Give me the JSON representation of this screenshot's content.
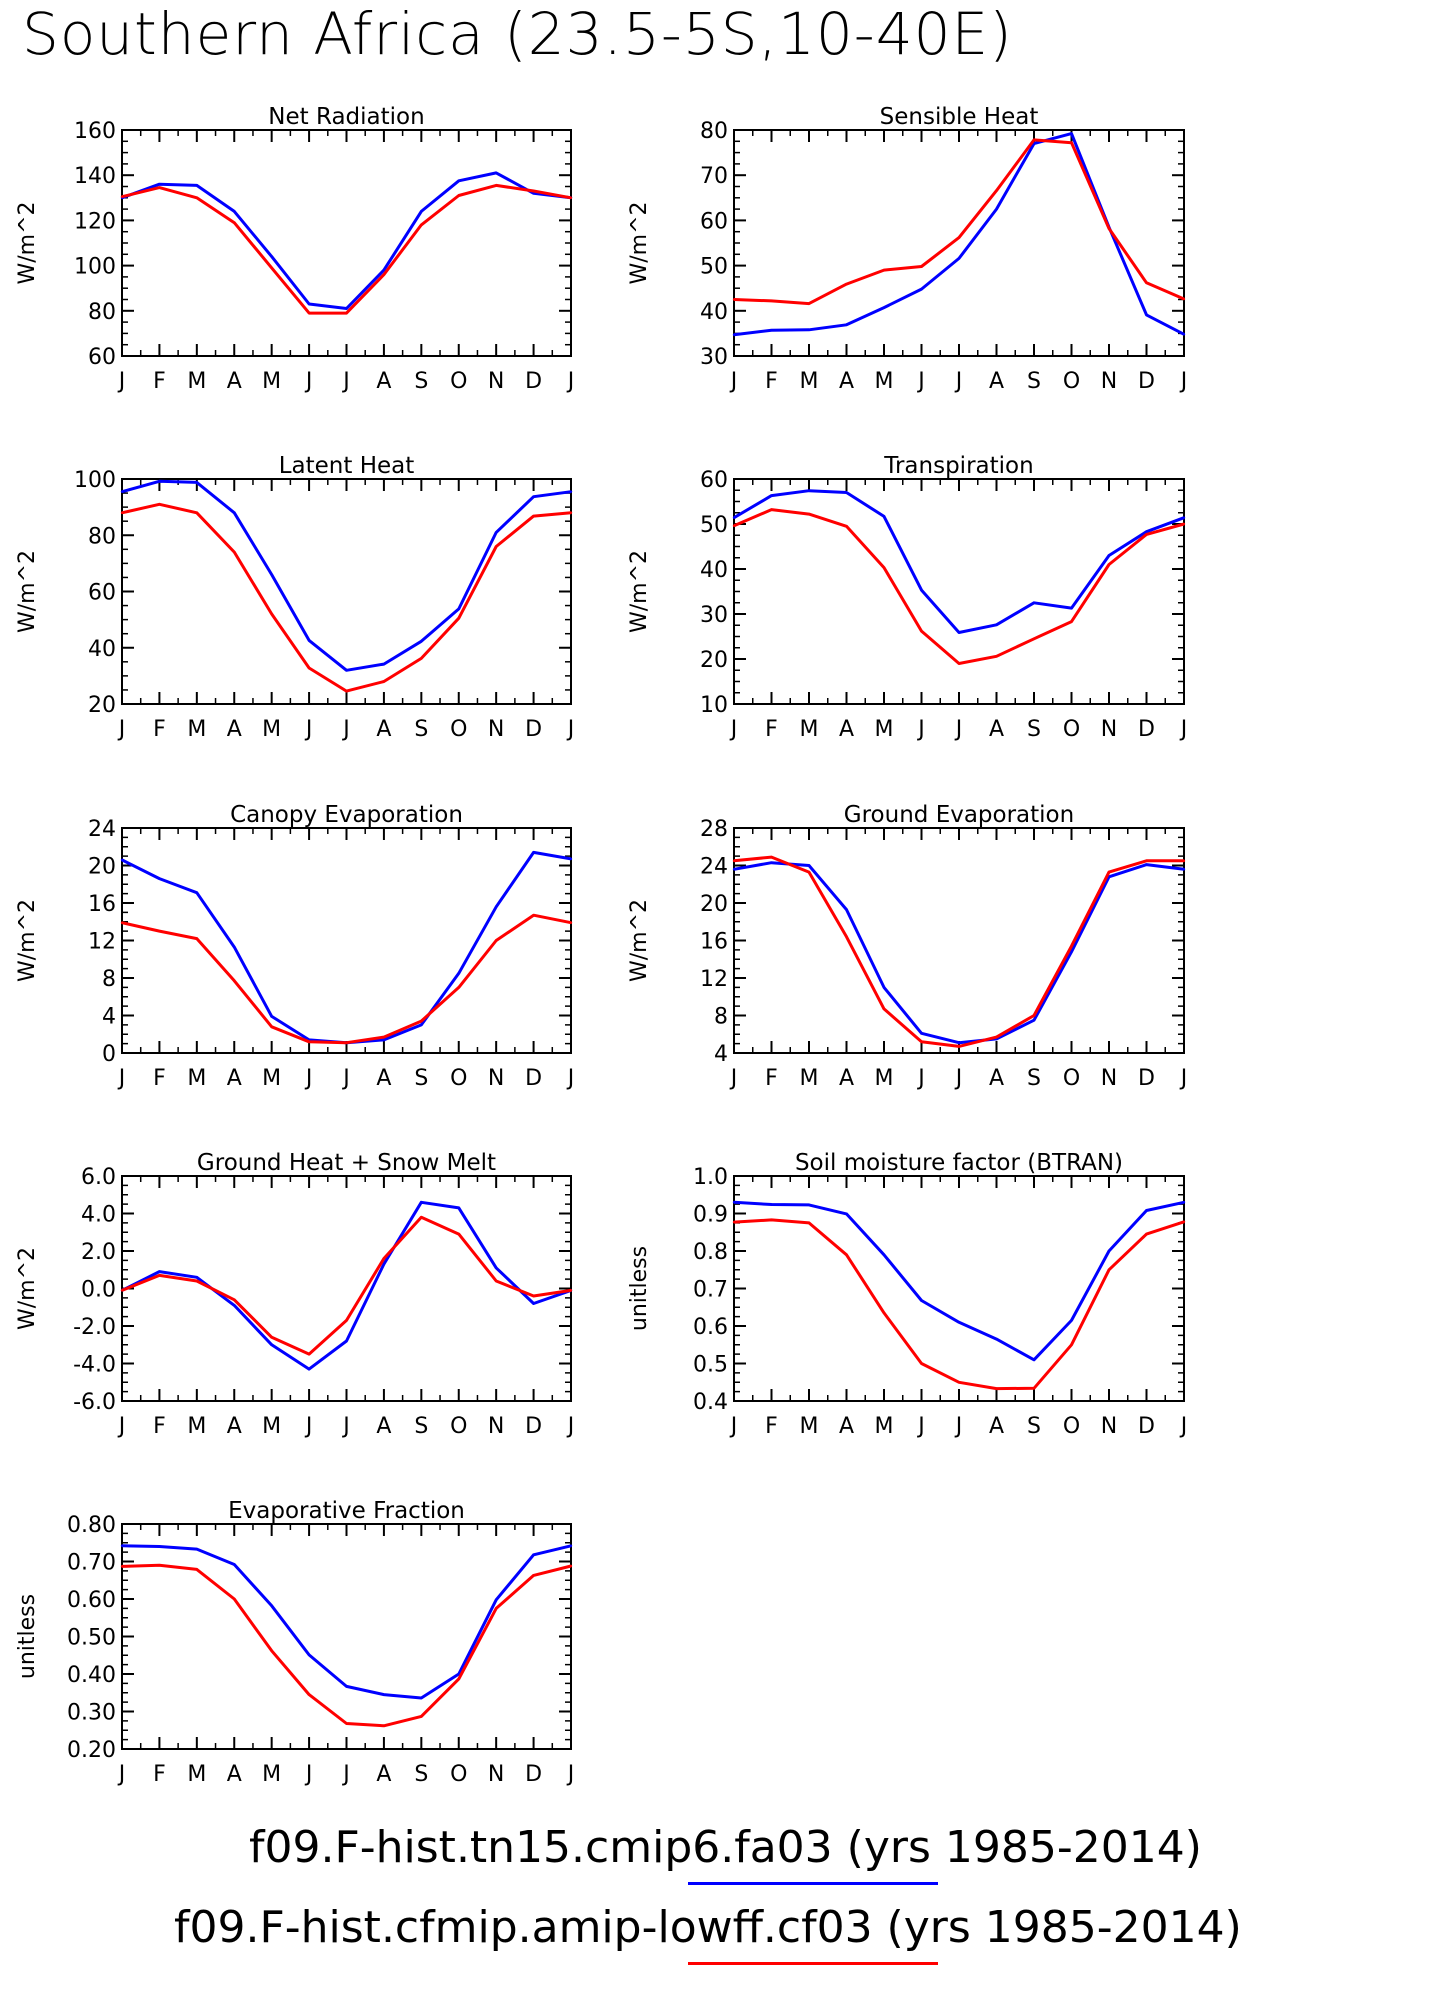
{
  "title": "Southern Africa (23.5-5S,10-40E)",
  "colors": {
    "series1": "#0000ff",
    "series2": "#ff0000",
    "axis": "#000000"
  },
  "legend": [
    {
      "label": "f09.F-hist.tn15.cmip6.fa03 (yrs 1985-2014)",
      "color": "#0000ff"
    },
    {
      "label": "f09.F-hist.cfmip.amip-lowff.cf03 (yrs 1985-2014)",
      "color": "#ff0000"
    }
  ],
  "chart_data": [
    {
      "type": "line",
      "title": "Net Radiation",
      "ylabel": "W/m^2",
      "categories": [
        "J",
        "F",
        "M",
        "A",
        "M",
        "J",
        "J",
        "A",
        "S",
        "O",
        "N",
        "D",
        "J"
      ],
      "ylim": [
        60,
        160
      ],
      "yticks": [
        "160",
        "140",
        "120",
        "100",
        "80",
        "60"
      ],
      "series": [
        {
          "name": "f09.F-hist.tn15.cmip6.fa03 (yrs 1985-2014)",
          "color": "#0000ff",
          "values": [
            130,
            136,
            135.5,
            124,
            104,
            83,
            81,
            98,
            124,
            137.5,
            141,
            132,
            130
          ]
        },
        {
          "name": "f09.F-hist.cfmip.amip-lowff.cf03 (yrs 1985-2014)",
          "color": "#ff0000",
          "values": [
            130.5,
            134.5,
            130,
            119,
            99,
            79,
            79,
            96,
            118,
            131,
            135.5,
            133,
            130
          ]
        }
      ]
    },
    {
      "type": "line",
      "title": "Sensible Heat",
      "ylabel": "W/m^2",
      "categories": [
        "J",
        "F",
        "M",
        "A",
        "M",
        "J",
        "J",
        "A",
        "S",
        "O",
        "N",
        "D",
        "J"
      ],
      "ylim": [
        30,
        80
      ],
      "yticks": [
        "80",
        "70",
        "60",
        "50",
        "40",
        "30"
      ],
      "series": [
        {
          "name": "f09.F-hist.tn15.cmip6.fa03 (yrs 1985-2014)",
          "color": "#0000ff",
          "values": [
            34.7,
            35.7,
            35.8,
            36.9,
            40.7,
            44.8,
            51.6,
            62.5,
            77.0,
            79.2,
            58.5,
            39.1,
            34.8
          ]
        },
        {
          "name": "f09.F-hist.cfmip.amip-lowff.cf03 (yrs 1985-2014)",
          "color": "#ff0000",
          "values": [
            42.5,
            42.2,
            41.6,
            45.9,
            49.0,
            49.8,
            56.2,
            66.6,
            77.8,
            77.2,
            58.2,
            46.2,
            42.6
          ]
        }
      ]
    },
    {
      "type": "line",
      "title": "Latent Heat",
      "ylabel": "W/m^2",
      "categories": [
        "J",
        "F",
        "M",
        "A",
        "M",
        "J",
        "J",
        "A",
        "S",
        "O",
        "N",
        "D",
        "J"
      ],
      "ylim": [
        20,
        100
      ],
      "yticks": [
        "100",
        "80",
        "60",
        "40",
        "20"
      ],
      "series": [
        {
          "name": "f09.F-hist.tn15.cmip6.fa03 (yrs 1985-2014)",
          "color": "#0000ff",
          "values": [
            95.5,
            99.2,
            98.8,
            88.0,
            66.0,
            42.6,
            32.0,
            34.2,
            42.3,
            53.8,
            81.0,
            93.7,
            95.5
          ]
        },
        {
          "name": "f09.F-hist.cfmip.amip-lowff.cf03 (yrs 1985-2014)",
          "color": "#ff0000",
          "values": [
            88.0,
            91.0,
            88.0,
            74.0,
            52.0,
            32.8,
            24.6,
            28.0,
            36.2,
            50.5,
            76.0,
            86.8,
            88.0
          ]
        }
      ]
    },
    {
      "type": "line",
      "title": "Transpiration",
      "ylabel": "W/m^2",
      "categories": [
        "J",
        "F",
        "M",
        "A",
        "M",
        "J",
        "J",
        "A",
        "S",
        "O",
        "N",
        "D",
        "J"
      ],
      "ylim": [
        10,
        60
      ],
      "yticks": [
        "60",
        "50",
        "40",
        "30",
        "20",
        "10"
      ],
      "series": [
        {
          "name": "f09.F-hist.tn15.cmip6.fa03 (yrs 1985-2014)",
          "color": "#0000ff",
          "values": [
            51.4,
            56.3,
            57.4,
            57.0,
            51.7,
            35.3,
            25.9,
            27.6,
            32.5,
            31.3,
            43.0,
            48.3,
            51.4
          ]
        },
        {
          "name": "f09.F-hist.cfmip.amip-lowff.cf03 (yrs 1985-2014)",
          "color": "#ff0000",
          "values": [
            49.6,
            53.2,
            52.2,
            49.5,
            40.3,
            26.2,
            19.0,
            20.6,
            24.5,
            28.3,
            41.0,
            47.7,
            50.0
          ]
        }
      ]
    },
    {
      "type": "line",
      "title": "Canopy Evaporation",
      "ylabel": "W/m^2",
      "categories": [
        "J",
        "F",
        "M",
        "A",
        "M",
        "J",
        "J",
        "A",
        "S",
        "O",
        "N",
        "D",
        "J"
      ],
      "ylim": [
        0,
        24
      ],
      "yticks": [
        "24",
        "20",
        "16",
        "12",
        "8",
        "4",
        "0"
      ],
      "series": [
        {
          "name": "f09.F-hist.tn15.cmip6.fa03 (yrs 1985-2014)",
          "color": "#0000ff",
          "values": [
            20.6,
            18.6,
            17.1,
            11.3,
            3.9,
            1.4,
            1.1,
            1.4,
            3.0,
            8.5,
            15.6,
            21.4,
            20.7
          ]
        },
        {
          "name": "f09.F-hist.cfmip.amip-lowff.cf03 (yrs 1985-2014)",
          "color": "#ff0000",
          "values": [
            13.9,
            13.0,
            12.2,
            7.7,
            2.8,
            1.2,
            1.1,
            1.7,
            3.4,
            7.0,
            12.0,
            14.7,
            13.9
          ]
        }
      ]
    },
    {
      "type": "line",
      "title": "Ground Evaporation",
      "ylabel": "W/m^2",
      "categories": [
        "J",
        "F",
        "M",
        "A",
        "M",
        "J",
        "J",
        "A",
        "S",
        "O",
        "N",
        "D",
        "J"
      ],
      "ylim": [
        4,
        28
      ],
      "yticks": [
        "28",
        "24",
        "20",
        "16",
        "12",
        "8",
        "4"
      ],
      "series": [
        {
          "name": "f09.F-hist.tn15.cmip6.fa03 (yrs 1985-2014)",
          "color": "#0000ff",
          "values": [
            23.6,
            24.3,
            24.0,
            19.3,
            11.0,
            6.1,
            5.1,
            5.5,
            7.5,
            14.8,
            22.8,
            24.1,
            23.6
          ]
        },
        {
          "name": "f09.F-hist.cfmip.amip-lowff.cf03 (yrs 1985-2014)",
          "color": "#ff0000",
          "values": [
            24.5,
            24.9,
            23.3,
            16.4,
            8.7,
            5.2,
            4.7,
            5.7,
            8.0,
            15.4,
            23.3,
            24.5,
            24.5
          ]
        }
      ]
    },
    {
      "type": "line",
      "title": "Ground Heat + Snow Melt",
      "ylabel": "W/m^2",
      "categories": [
        "J",
        "F",
        "M",
        "A",
        "M",
        "J",
        "J",
        "A",
        "S",
        "O",
        "N",
        "D",
        "J"
      ],
      "ylim": [
        -6,
        6
      ],
      "yticks": [
        "6.0",
        "4.0",
        "2.0",
        "0.0",
        "-2.0",
        "-4.0",
        "-6.0"
      ],
      "series": [
        {
          "name": "f09.F-hist.tn15.cmip6.fa03 (yrs 1985-2014)",
          "color": "#0000ff",
          "values": [
            -0.1,
            0.9,
            0.6,
            -0.9,
            -3.0,
            -4.3,
            -2.8,
            1.3,
            4.6,
            4.3,
            1.1,
            -0.8,
            -0.1
          ]
        },
        {
          "name": "f09.F-hist.cfmip.amip-lowff.cf03 (yrs 1985-2014)",
          "color": "#ff0000",
          "values": [
            -0.1,
            0.7,
            0.4,
            -0.6,
            -2.6,
            -3.5,
            -1.7,
            1.6,
            3.8,
            2.9,
            0.4,
            -0.4,
            -0.1
          ]
        }
      ]
    },
    {
      "type": "line",
      "title": "Soil moisture factor (BTRAN)",
      "ylabel": "unitless",
      "categories": [
        "J",
        "F",
        "M",
        "A",
        "M",
        "J",
        "J",
        "A",
        "S",
        "O",
        "N",
        "D",
        "J"
      ],
      "ylim": [
        0.4,
        1.0
      ],
      "yticks": [
        "1.0",
        "0.9",
        "0.8",
        "0.7",
        "0.6",
        "0.5",
        "0.4"
      ],
      "series": [
        {
          "name": "f09.F-hist.tn15.cmip6.fa03 (yrs 1985-2014)",
          "color": "#0000ff",
          "values": [
            0.93,
            0.924,
            0.923,
            0.899,
            0.79,
            0.668,
            0.61,
            0.565,
            0.51,
            0.615,
            0.8,
            0.908,
            0.93
          ]
        },
        {
          "name": "f09.F-hist.cfmip.amip-lowff.cf03 (yrs 1985-2014)",
          "color": "#ff0000",
          "values": [
            0.877,
            0.883,
            0.875,
            0.79,
            0.635,
            0.5,
            0.45,
            0.433,
            0.434,
            0.55,
            0.75,
            0.845,
            0.878
          ]
        }
      ]
    },
    {
      "type": "line",
      "title": "Evaporative Fraction",
      "ylabel": "unitless",
      "categories": [
        "J",
        "F",
        "M",
        "A",
        "M",
        "J",
        "J",
        "A",
        "S",
        "O",
        "N",
        "D",
        "J"
      ],
      "ylim": [
        0.2,
        0.8
      ],
      "yticks": [
        "0.80",
        "0.70",
        "0.60",
        "0.50",
        "0.40",
        "0.30",
        "0.20"
      ],
      "series": [
        {
          "name": "f09.F-hist.tn15.cmip6.fa03 (yrs 1985-2014)",
          "color": "#0000ff",
          "values": [
            0.742,
            0.74,
            0.733,
            0.692,
            0.582,
            0.451,
            0.367,
            0.345,
            0.336,
            0.4,
            0.598,
            0.718,
            0.742
          ]
        },
        {
          "name": "f09.F-hist.cfmip.amip-lowff.cf03 (yrs 1985-2014)",
          "color": "#ff0000",
          "values": [
            0.687,
            0.69,
            0.679,
            0.6,
            0.462,
            0.345,
            0.268,
            0.262,
            0.287,
            0.387,
            0.575,
            0.663,
            0.688
          ]
        }
      ]
    }
  ]
}
